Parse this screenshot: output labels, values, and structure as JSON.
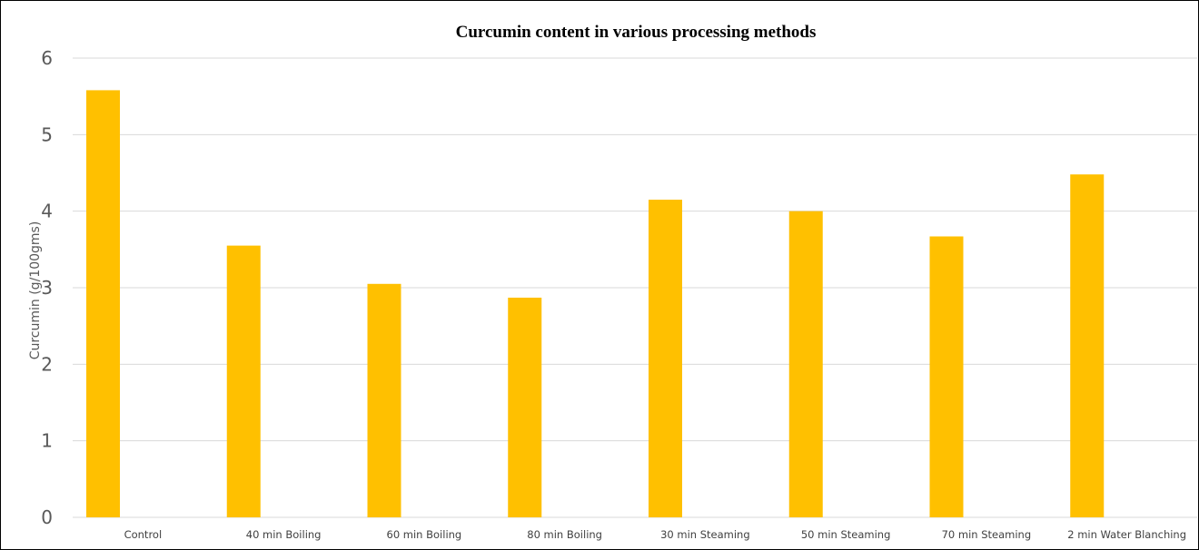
{
  "chart_data": {
    "type": "bar",
    "title": "Curcumin content in various processing methods",
    "xlabel": "",
    "ylabel": "Curcumin (g/100gms)",
    "categories": [
      "Control",
      "40 min Boiling",
      "60 min Boiling",
      "80 min Boiling",
      "30 min Steaming",
      "50 min Steaming",
      "70 min Steaming",
      "2 min Water Blanching"
    ],
    "values": [
      5.58,
      3.55,
      3.05,
      2.87,
      4.15,
      4.0,
      3.67,
      4.48
    ],
    "ylim": [
      0,
      6
    ],
    "yticks": [
      "0",
      "1",
      "2",
      "3",
      "4",
      "5",
      "6"
    ],
    "grid": true,
    "legend": "none",
    "bar_color": "#FFC000",
    "grid_color": "#D9D9D9"
  }
}
